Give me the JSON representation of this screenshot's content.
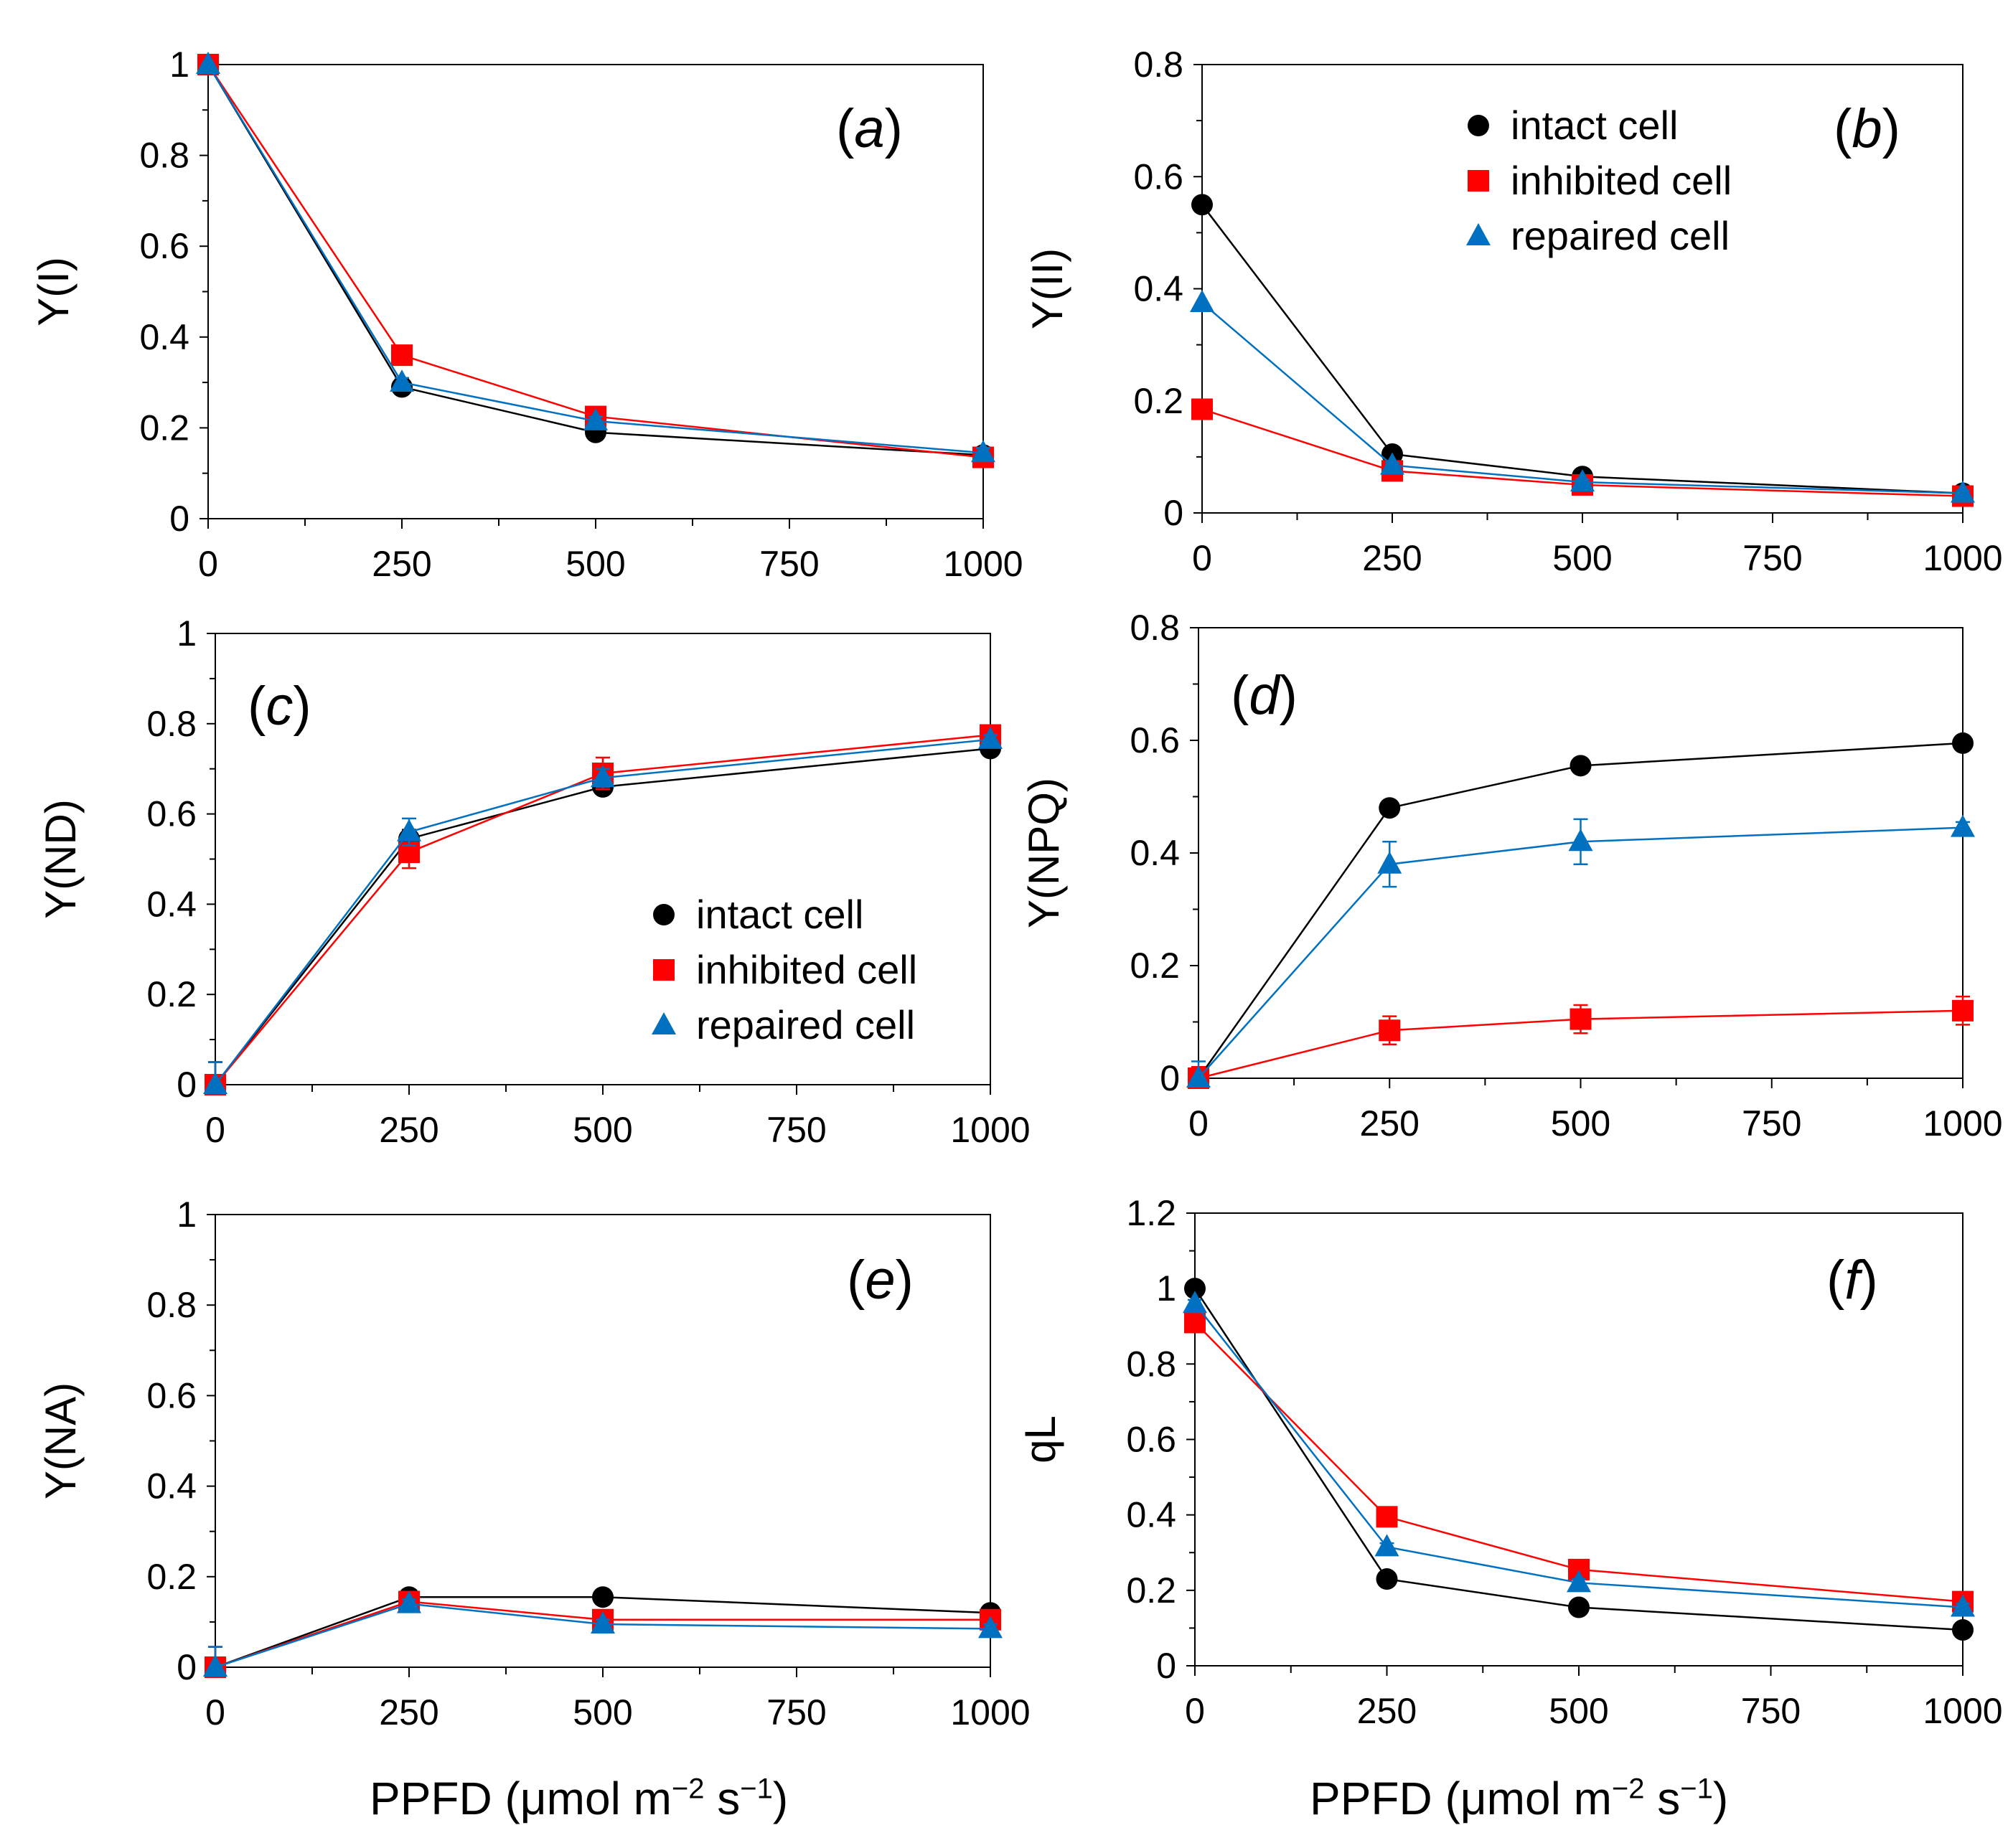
{
  "colors": {
    "intact": "#000000",
    "inhibited": "#ff0000",
    "repaired": "#0070c0"
  },
  "series_names": [
    "intact cell",
    "inhibited cell",
    "repaired cell"
  ],
  "shared_xlabel": {
    "prefix": "PPFD (μmol m",
    "exp1": "−2",
    "mid": " s",
    "exp2": "−1",
    "suffix": ")"
  },
  "chart_data": [
    {
      "type": "line",
      "id": "a",
      "label": "a",
      "ylabel": "Y(I)",
      "xlabel": "",
      "x": [
        0,
        250,
        500,
        1000
      ],
      "xlim": [
        0,
        1000
      ],
      "xticks": [
        "0",
        "250",
        "500",
        "750",
        "1000"
      ],
      "ylim": [
        0,
        1
      ],
      "yticks": [
        "0",
        "0.2",
        "0.4",
        "0.6",
        "0.8",
        "1"
      ],
      "legend": "none",
      "series": [
        {
          "name": "intact cell",
          "marker": "circle",
          "values": [
            1.0,
            0.29,
            0.19,
            0.14
          ],
          "err": [
            0,
            0.01,
            0.01,
            0.01
          ]
        },
        {
          "name": "inhibited cell",
          "marker": "square",
          "values": [
            1.0,
            0.36,
            0.225,
            0.135
          ],
          "err": [
            0,
            0.01,
            0.01,
            0.01
          ]
        },
        {
          "name": "repaired cell",
          "marker": "triangle",
          "values": [
            1.0,
            0.3,
            0.215,
            0.145
          ],
          "err": [
            0,
            0.01,
            0.01,
            0.01
          ]
        }
      ]
    },
    {
      "type": "line",
      "id": "b",
      "label": "b",
      "ylabel": "Y(II)",
      "xlabel": "",
      "x": [
        0,
        250,
        500,
        1000
      ],
      "xlim": [
        0,
        1000
      ],
      "xticks": [
        "0",
        "250",
        "500",
        "750",
        "1000"
      ],
      "ylim": [
        0,
        0.8
      ],
      "yticks": [
        "0",
        "0.2",
        "0.4",
        "0.6",
        "0.8"
      ],
      "legend": "top-center",
      "series": [
        {
          "name": "intact cell",
          "marker": "circle",
          "values": [
            0.55,
            0.105,
            0.065,
            0.035
          ],
          "err": [
            0,
            0.005,
            0.005,
            0.005
          ]
        },
        {
          "name": "inhibited cell",
          "marker": "square",
          "values": [
            0.185,
            0.075,
            0.05,
            0.03
          ],
          "err": [
            0,
            0.005,
            0.005,
            0.005
          ]
        },
        {
          "name": "repaired cell",
          "marker": "triangle",
          "values": [
            0.375,
            0.085,
            0.055,
            0.035
          ],
          "err": [
            0,
            0.005,
            0.005,
            0.005
          ]
        }
      ]
    },
    {
      "type": "line",
      "id": "c",
      "label": "c",
      "ylabel": "Y(ND)",
      "xlabel": "",
      "x": [
        0,
        250,
        500,
        1000
      ],
      "xlim": [
        0,
        1000
      ],
      "xticks": [
        "0",
        "250",
        "500",
        "750",
        "1000"
      ],
      "ylim": [
        0,
        1
      ],
      "yticks": [
        "0",
        "0.2",
        "0.4",
        "0.6",
        "0.8",
        "1"
      ],
      "legend": "bottom-right",
      "series": [
        {
          "name": "intact cell",
          "marker": "circle",
          "values": [
            0.0,
            0.545,
            0.66,
            0.745
          ],
          "err": [
            0.05,
            0.02,
            0.01,
            0.01
          ]
        },
        {
          "name": "inhibited cell",
          "marker": "square",
          "values": [
            0.0,
            0.515,
            0.69,
            0.775
          ],
          "err": [
            0.05,
            0.035,
            0.035,
            0.01
          ]
        },
        {
          "name": "repaired cell",
          "marker": "triangle",
          "values": [
            0.0,
            0.56,
            0.68,
            0.765
          ],
          "err": [
            0.05,
            0.03,
            0.02,
            0.01
          ]
        }
      ]
    },
    {
      "type": "line",
      "id": "d",
      "label": "d",
      "ylabel": "Y(NPQ)",
      "xlabel": "",
      "x": [
        0,
        250,
        500,
        1000
      ],
      "xlim": [
        0,
        1000
      ],
      "xticks": [
        "0",
        "250",
        "500",
        "750",
        "1000"
      ],
      "ylim": [
        0,
        0.8
      ],
      "yticks": [
        "0",
        "0.2",
        "0.4",
        "0.6",
        "0.8"
      ],
      "legend": "none",
      "series": [
        {
          "name": "intact cell",
          "marker": "circle",
          "values": [
            0.0,
            0.48,
            0.555,
            0.595
          ],
          "err": [
            0.02,
            0.01,
            0.01,
            0.01
          ]
        },
        {
          "name": "inhibited cell",
          "marker": "square",
          "values": [
            0.0,
            0.085,
            0.105,
            0.12
          ],
          "err": [
            0.02,
            0.025,
            0.025,
            0.025
          ]
        },
        {
          "name": "repaired cell",
          "marker": "triangle",
          "values": [
            0.0,
            0.38,
            0.42,
            0.445
          ],
          "err": [
            0.03,
            0.04,
            0.04,
            0.01
          ]
        }
      ]
    },
    {
      "type": "line",
      "id": "e",
      "label": "e",
      "ylabel": "Y(NA)",
      "xlabel": "",
      "x": [
        0,
        250,
        500,
        1000
      ],
      "xlim": [
        0,
        1000
      ],
      "xticks": [
        "0",
        "250",
        "500",
        "750",
        "1000"
      ],
      "ylim": [
        0,
        1
      ],
      "yticks": [
        "0",
        "0.2",
        "0.4",
        "0.6",
        "0.8",
        "1"
      ],
      "legend": "none",
      "series": [
        {
          "name": "intact cell",
          "marker": "circle",
          "values": [
            0.0,
            0.155,
            0.155,
            0.12
          ],
          "err": [
            0.045,
            0.01,
            0.01,
            0.01
          ]
        },
        {
          "name": "inhibited cell",
          "marker": "square",
          "values": [
            0.0,
            0.145,
            0.105,
            0.105
          ],
          "err": [
            0.045,
            0.01,
            0.01,
            0.01
          ]
        },
        {
          "name": "repaired cell",
          "marker": "triangle",
          "values": [
            0.0,
            0.14,
            0.095,
            0.085
          ],
          "err": [
            0.045,
            0.01,
            0.01,
            0.01
          ]
        }
      ]
    },
    {
      "type": "line",
      "id": "f",
      "label": "f",
      "ylabel": "qL",
      "xlabel": "",
      "x": [
        0,
        250,
        500,
        1000
      ],
      "xlim": [
        0,
        1000
      ],
      "xticks": [
        "0",
        "250",
        "500",
        "750",
        "1000"
      ],
      "ylim": [
        0,
        1.2
      ],
      "yticks": [
        "0",
        "0.2",
        "0.4",
        "0.6",
        "0.8",
        "1",
        "1.2"
      ],
      "legend": "none",
      "series": [
        {
          "name": "intact cell",
          "marker": "circle",
          "values": [
            1.0,
            0.23,
            0.155,
            0.095
          ],
          "err": [
            0.01,
            0.01,
            0.01,
            0.01
          ]
        },
        {
          "name": "inhibited cell",
          "marker": "square",
          "values": [
            0.91,
            0.395,
            0.255,
            0.17
          ],
          "err": [
            0.01,
            0.01,
            0.01,
            0.01
          ]
        },
        {
          "name": "repaired cell",
          "marker": "triangle",
          "values": [
            0.96,
            0.315,
            0.22,
            0.155
          ],
          "err": [
            0.01,
            0.01,
            0.01,
            0.01
          ]
        }
      ]
    }
  ]
}
